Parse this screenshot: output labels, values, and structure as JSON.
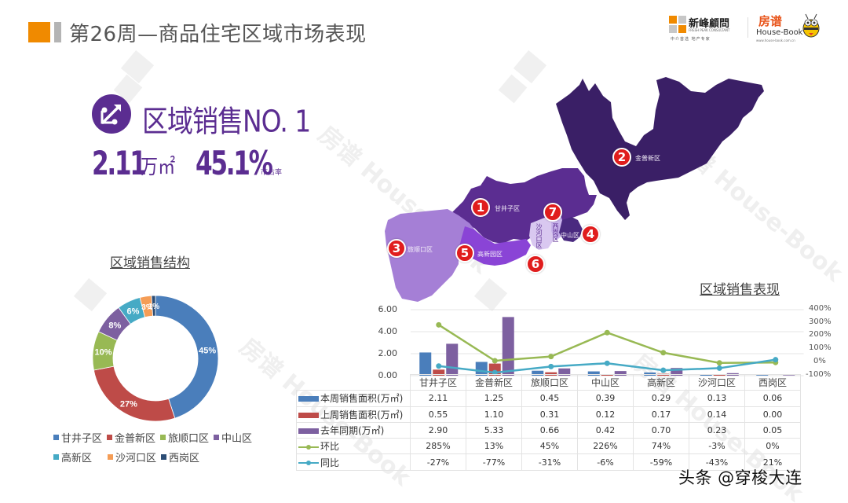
{
  "header": {
    "title": "第26周—商品住宅区域市场表现",
    "accent_color": "#f08a00",
    "logo1": {
      "name": "新峰顧問",
      "en": "FRESH PEAK CONSULTANT",
      "tagline": "中介首选  地产专家"
    },
    "logo2": {
      "cn": "房谱",
      "en": "House-Book",
      "url": "www.house-book.com.cn"
    }
  },
  "highlight": {
    "icon": "transfer-arrows-icon",
    "title": "区域销售NO. 1",
    "value": "2.11",
    "unit": "万㎡",
    "share": "45.1%",
    "share_label": "市占率",
    "color": "#5b2d91"
  },
  "donut": {
    "title": "区域销售结构",
    "labels": [
      "45%",
      "27%",
      "10%",
      "8%",
      "6%",
      "3%",
      "1%"
    ],
    "legend": [
      {
        "label": "甘井子区",
        "color": "#4a7ebb"
      },
      {
        "label": "金普新区",
        "color": "#be4b48"
      },
      {
        "label": "旅顺口区",
        "color": "#98b954"
      },
      {
        "label": "中山区",
        "color": "#7d60a0"
      },
      {
        "label": "高新区",
        "color": "#46aac5"
      },
      {
        "label": "沙河口区",
        "color": "#f59d56"
      },
      {
        "label": "西岗区",
        "color": "#2c4d75"
      }
    ]
  },
  "map": {
    "regions": [
      {
        "num": "1",
        "label": "甘井子区"
      },
      {
        "num": "2",
        "label": "金普新区"
      },
      {
        "num": "3",
        "label": "旅顺口区"
      },
      {
        "num": "4",
        "label": "中山区"
      },
      {
        "num": "5",
        "label": "高新园区"
      },
      {
        "num": "6",
        "label": "沙河口区"
      },
      {
        "num": "7",
        "label": "西岗区"
      }
    ]
  },
  "combo": {
    "title": "区域销售表现",
    "left_axis": [
      "6.00",
      "4.00",
      "2.00",
      "0.00"
    ],
    "right_axis": [
      "400%",
      "300%",
      "200%",
      "100%",
      "0%",
      "-100%"
    ],
    "categories": [
      "甘井子区",
      "金普新区",
      "旅顺口区",
      "中山区",
      "高新区",
      "沙河口区",
      "西岗区"
    ],
    "rows": [
      {
        "label": "本周销售面积(万㎡)",
        "type": "bar",
        "color": "#4a7ebb",
        "values": [
          "2.11",
          "1.25",
          "0.45",
          "0.39",
          "0.29",
          "0.13",
          "0.06"
        ]
      },
      {
        "label": "上周销售面积(万㎡)",
        "type": "bar",
        "color": "#be4b48",
        "values": [
          "0.55",
          "1.10",
          "0.31",
          "0.12",
          "0.17",
          "0.14",
          "0.00"
        ]
      },
      {
        "label": "去年同期(万㎡)",
        "type": "bar",
        "color": "#7d60a0",
        "values": [
          "2.90",
          "5.33",
          "0.66",
          "0.42",
          "0.70",
          "0.23",
          "0.05"
        ]
      },
      {
        "label": "环比",
        "type": "line",
        "color": "#98b954",
        "values": [
          "285%",
          "13%",
          "45%",
          "226%",
          "74%",
          "-3%",
          "0%"
        ]
      },
      {
        "label": "同比",
        "type": "line",
        "color": "#46aac5",
        "values": [
          "-27%",
          "-77%",
          "-31%",
          "-6%",
          "-59%",
          "-43%",
          "21%"
        ]
      }
    ]
  },
  "chart_data": [
    {
      "type": "pie",
      "title": "区域销售结构",
      "categories": [
        "甘井子区",
        "金普新区",
        "旅顺口区",
        "中山区",
        "高新区",
        "沙河口区",
        "西岗区"
      ],
      "values": [
        45,
        27,
        10,
        8,
        6,
        3,
        1
      ],
      "legend_position": "bottom",
      "donut": true
    },
    {
      "type": "bar",
      "title": "区域销售表现",
      "categories": [
        "甘井子区",
        "金普新区",
        "旅顺口区",
        "中山区",
        "高新区",
        "沙河口区",
        "西岗区"
      ],
      "series": [
        {
          "name": "本周销售面积(万㎡)",
          "type": "bar",
          "axis": "left",
          "values": [
            2.11,
            1.25,
            0.45,
            0.39,
            0.29,
            0.13,
            0.06
          ]
        },
        {
          "name": "上周销售面积(万㎡)",
          "type": "bar",
          "axis": "left",
          "values": [
            0.55,
            1.1,
            0.31,
            0.12,
            0.17,
            0.14,
            0.0
          ]
        },
        {
          "name": "去年同期(万㎡)",
          "type": "bar",
          "axis": "left",
          "values": [
            2.9,
            5.33,
            0.66,
            0.42,
            0.7,
            0.23,
            0.05
          ]
        },
        {
          "name": "环比",
          "type": "line",
          "axis": "right",
          "values": [
            285,
            13,
            45,
            226,
            74,
            -3,
            0
          ]
        },
        {
          "name": "同比",
          "type": "line",
          "axis": "right",
          "values": [
            -27,
            -77,
            -31,
            -6,
            -59,
            -43,
            21
          ]
        }
      ],
      "ylim": [
        0,
        6
      ],
      "y2lim": [
        -100,
        400
      ],
      "yticks": [
        "0.00",
        "2.00",
        "4.00",
        "6.00"
      ],
      "y2ticks": [
        "-100%",
        "0%",
        "100%",
        "200%",
        "300%",
        "400%"
      ],
      "grid": true,
      "legend_position": "data-table"
    }
  ],
  "watermark": {
    "bottom_right": "头条 @穿梭大连"
  }
}
